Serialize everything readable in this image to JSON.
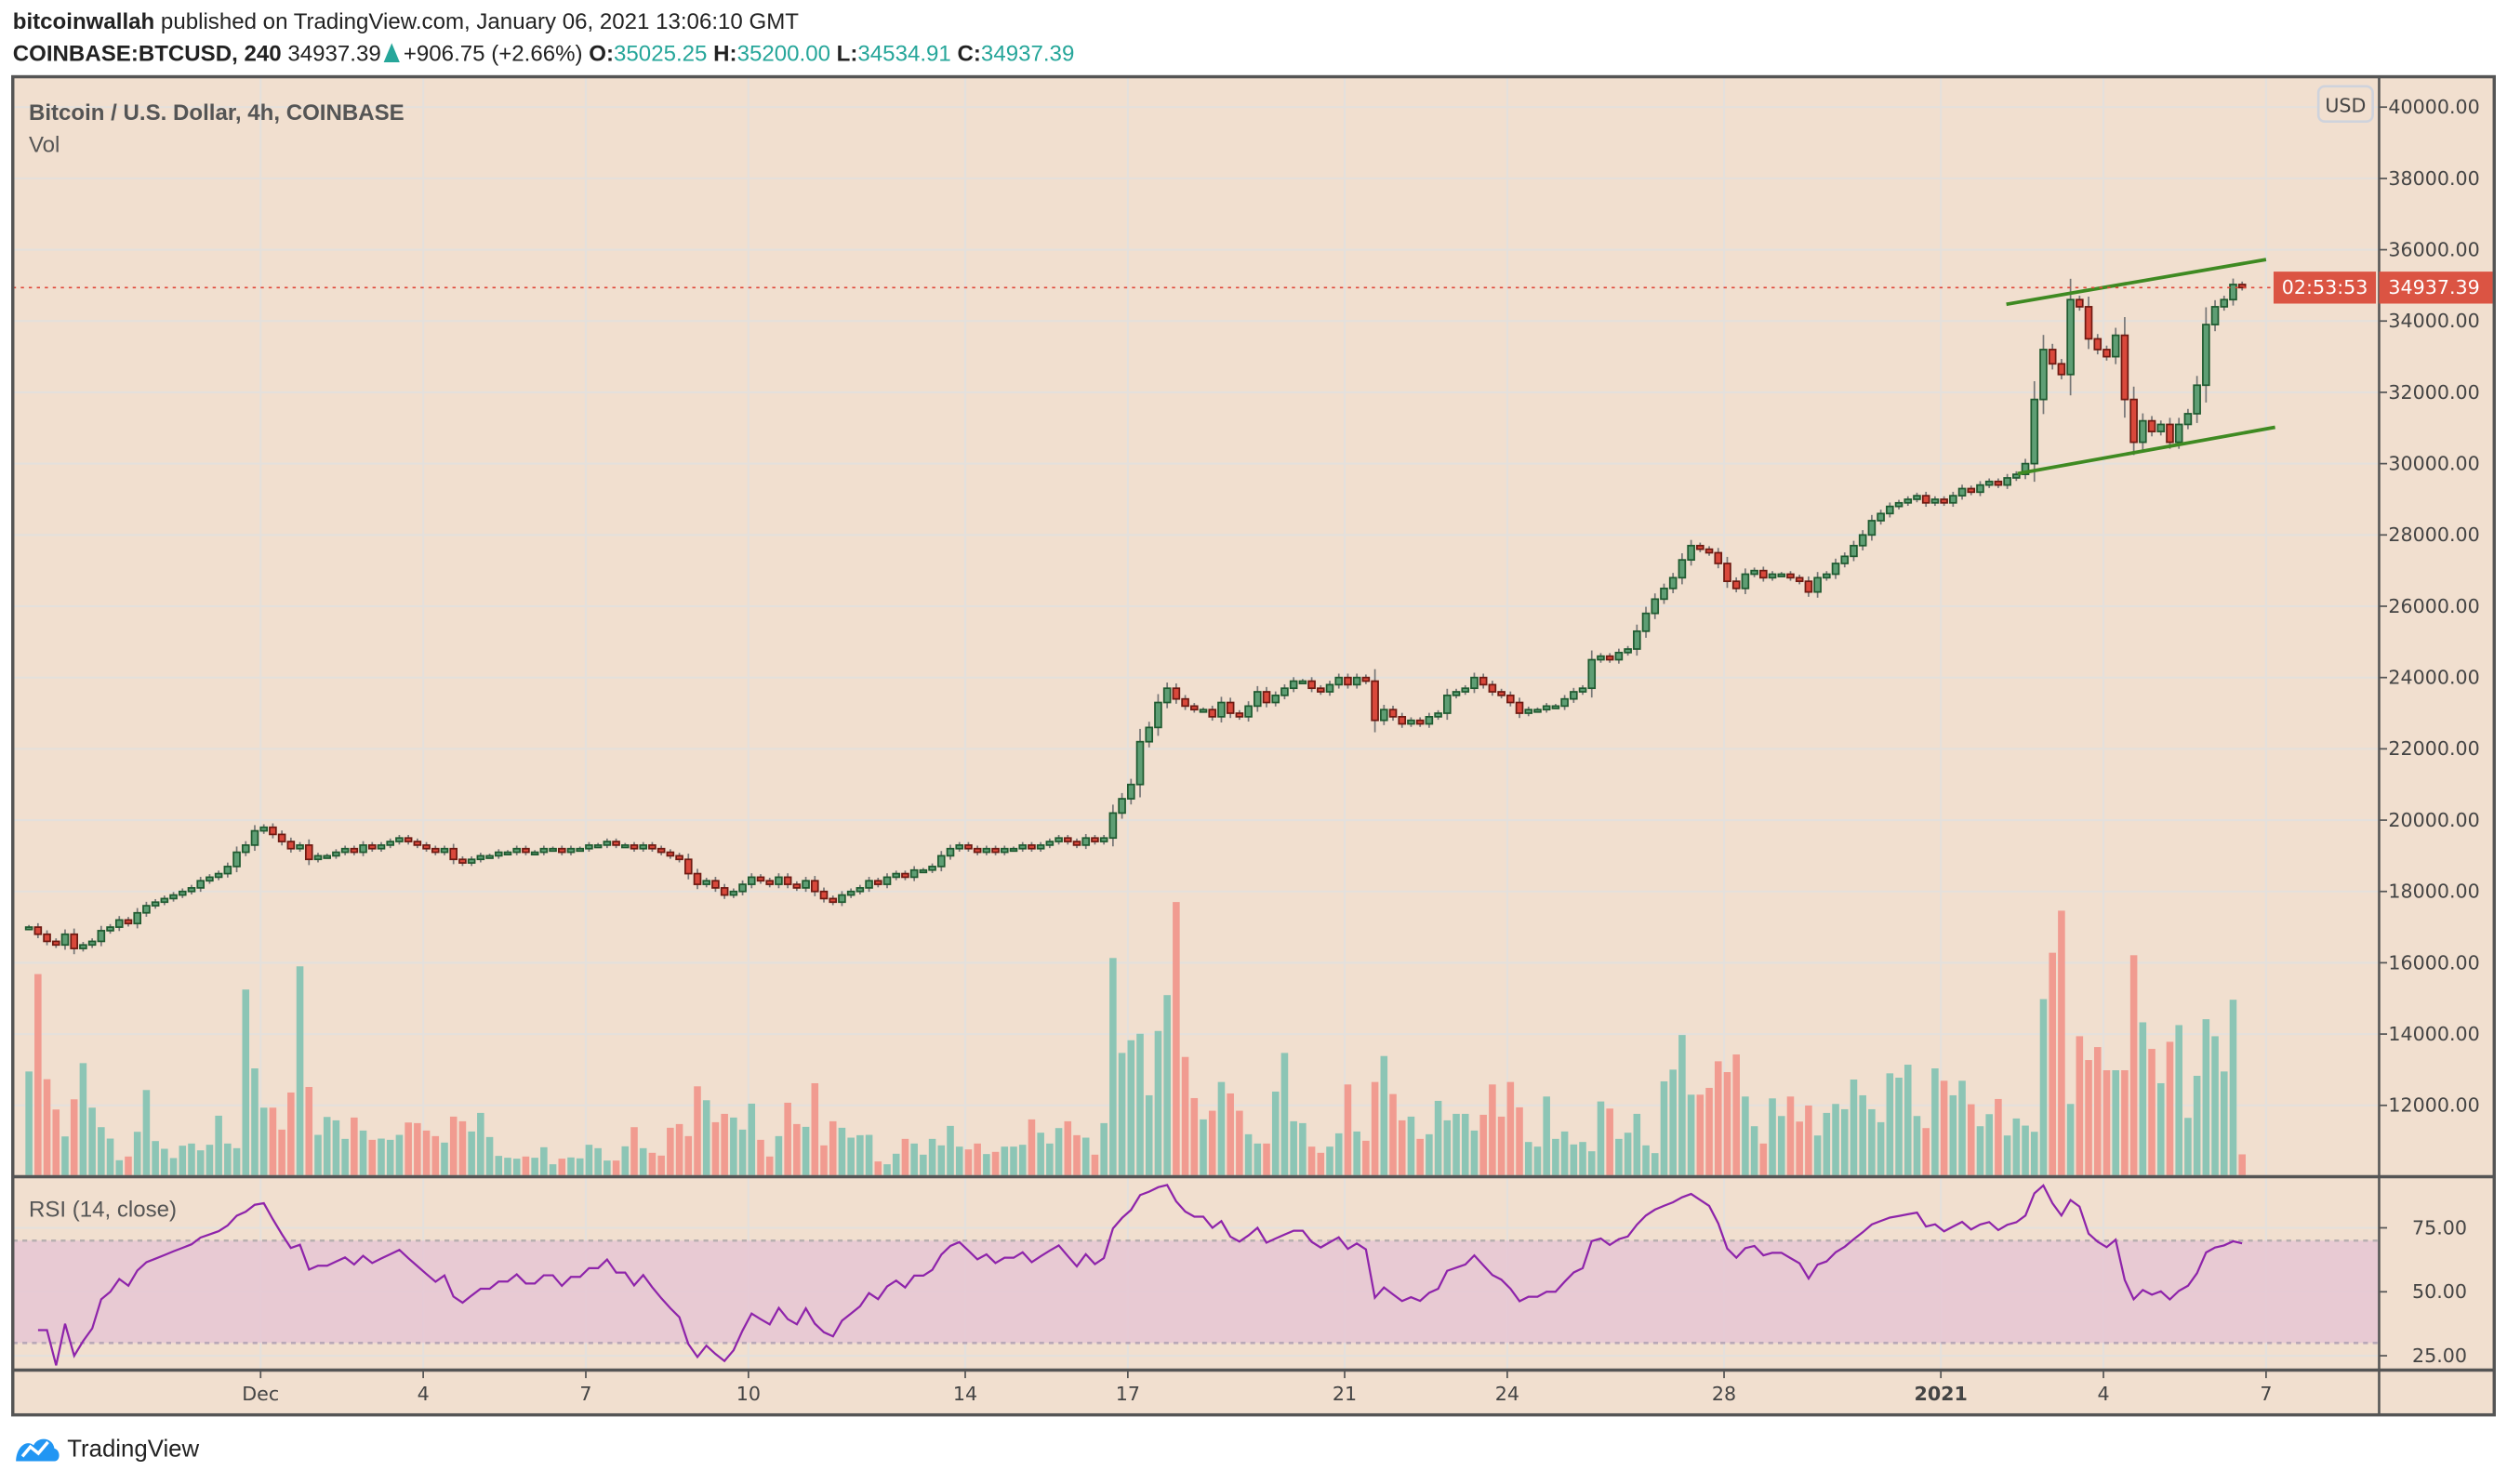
{
  "header": {
    "author": "bitcoinwallah",
    "published": "published on TradingView.com, January 06, 2021 13:06:10 GMT",
    "symbol": "COINBASE:BTCUSD, 240",
    "last": "34937.39",
    "change": "+906.75 (+2.66%)",
    "open_label": "O:",
    "open": "35025.25",
    "high_label": "H:",
    "high": "35200.00",
    "low_label": "L:",
    "low": "34534.91",
    "close_label": "C:",
    "close": "34937.39"
  },
  "legend": {
    "title": "Bitcoin / U.S. Dollar, 4h, COINBASE",
    "volume": "Vol"
  },
  "price_axis": {
    "currency": "USD",
    "ticks": [
      "12000.00",
      "14000.00",
      "16000.00",
      "18000.00",
      "20000.00",
      "22000.00",
      "24000.00",
      "26000.00",
      "28000.00",
      "30000.00",
      "32000.00",
      "34000.00",
      "36000.00",
      "38000.00",
      "40000.00"
    ],
    "last_price_label": "34937.39",
    "countdown": "02:53:53"
  },
  "rsi": {
    "label": "RSI (14, close)",
    "ticks": [
      "75.00",
      "50.00",
      "25.00"
    ],
    "upper_band": 70,
    "lower_band": 30,
    "length": 14
  },
  "time_axis": {
    "ticks": [
      {
        "label": "Dec",
        "date": "2020-12-01"
      },
      {
        "label": "4",
        "date": "2020-12-04"
      },
      {
        "label": "7",
        "date": "2020-12-07"
      },
      {
        "label": "10",
        "date": "2020-12-10"
      },
      {
        "label": "14",
        "date": "2020-12-14"
      },
      {
        "label": "17",
        "date": "2020-12-17"
      },
      {
        "label": "21",
        "date": "2020-12-21"
      },
      {
        "label": "24",
        "date": "2020-12-24"
      },
      {
        "label": "28",
        "date": "2020-12-28"
      },
      {
        "label": "2021",
        "date": "2021-01-01"
      },
      {
        "label": "4",
        "date": "2021-01-04"
      },
      {
        "label": "7",
        "date": "2021-01-07"
      }
    ]
  },
  "footer": {
    "brand": "TradingView"
  },
  "colors": {
    "background": "#f1dfcf",
    "up": "#5e9e74",
    "up_border": "#1f5a30",
    "down": "#d9483b",
    "down_border": "#6e1a12",
    "volume_up": "#8cc5b5",
    "volume_down": "#f19b90",
    "rsi_line": "#8e24aa",
    "rsi_band": "#e6c7d3",
    "trendline": "#3f8a22",
    "price_line": "#e0473a",
    "accent": "#26a69a",
    "brand": "#2196f3"
  },
  "chart_data": {
    "type": "candlestick",
    "interval": "4h",
    "start": "2020-11-26T16:00:00Z",
    "ylim": [
      10000,
      40000
    ],
    "close": [
      17000,
      16800,
      16600,
      16500,
      16800,
      16400,
      16500,
      16600,
      16900,
      17000,
      17200,
      17100,
      17400,
      17600,
      17700,
      17800,
      17900,
      18000,
      18100,
      18300,
      18400,
      18500,
      18700,
      19100,
      19300,
      19700,
      19800,
      19600,
      19400,
      19200,
      19300,
      18900,
      19000,
      19000,
      19100,
      19200,
      19100,
      19300,
      19200,
      19300,
      19400,
      19500,
      19400,
      19300,
      19200,
      19100,
      19200,
      18900,
      18800,
      18900,
      19000,
      19000,
      19100,
      19100,
      19200,
      19100,
      19100,
      19200,
      19200,
      19100,
      19200,
      19200,
      19300,
      19300,
      19400,
      19300,
      19300,
      19200,
      19300,
      19200,
      19100,
      19000,
      18900,
      18500,
      18200,
      18300,
      18100,
      17900,
      18000,
      18200,
      18400,
      18300,
      18200,
      18400,
      18200,
      18100,
      18300,
      18000,
      17800,
      17700,
      17900,
      18000,
      18100,
      18300,
      18200,
      18400,
      18500,
      18400,
      18600,
      18600,
      18700,
      19000,
      19200,
      19300,
      19200,
      19100,
      19200,
      19100,
      19200,
      19200,
      19300,
      19200,
      19300,
      19400,
      19500,
      19400,
      19300,
      19500,
      19400,
      19500,
      20200,
      20600,
      21000,
      22200,
      22600,
      23300,
      23700,
      23400,
      23200,
      23100,
      23100,
      22900,
      23300,
      23000,
      22900,
      23200,
      23600,
      23300,
      23500,
      23700,
      23900,
      23900,
      23700,
      23600,
      23800,
      24000,
      23800,
      24000,
      23900,
      22800,
      23100,
      22900,
      22700,
      22800,
      22700,
      22900,
      23000,
      23500,
      23600,
      23700,
      24000,
      23800,
      23600,
      23500,
      23300,
      23000,
      23100,
      23100,
      23200,
      23200,
      23400,
      23600,
      23700,
      24500,
      24600,
      24500,
      24700,
      24800,
      25300,
      25800,
      26200,
      26500,
      26800,
      27300,
      27700,
      27600,
      27500,
      27200,
      26700,
      26500,
      26900,
      27000,
      26800,
      26900,
      26900,
      26800,
      26700,
      26400,
      26800,
      26900,
      27200,
      27400,
      27700,
      28000,
      28400,
      28600,
      28800,
      28900,
      29000,
      29100,
      28900,
      29000,
      28900,
      29100,
      29300,
      29200,
      29400,
      29500,
      29400,
      29600,
      29700,
      30000,
      31800,
      33200,
      32800,
      32500,
      34600,
      34400,
      33500,
      33200,
      33000,
      33600,
      31800,
      30600,
      31200,
      30900,
      31100,
      30600,
      31100,
      31400,
      32200,
      33900,
      34400,
      34600,
      35025.25,
      34937.39
    ],
    "volume": [
      335,
      650,
      310,
      212,
      125,
      245,
      362,
      218,
      155,
      118,
      48,
      60,
      140,
      275,
      110,
      85,
      55,
      95,
      102,
      80,
      98,
      192,
      102,
      87,
      600,
      345,
      218,
      218,
      147,
      267,
      675,
      285,
      130,
      188,
      177,
      117,
      186,
      144,
      114,
      118,
      114,
      130,
      170,
      168,
      144,
      126,
      105,
      189,
      174,
      141,
      201,
      123,
      62,
      56,
      53,
      60,
      56,
      90,
      35,
      53,
      57,
      54,
      98,
      87,
      47,
      47,
      93,
      155,
      87,
      72,
      63,
      153,
      165,
      126,
      287,
      242,
      171,
      198,
      186,
      147,
      231,
      114,
      60,
      126,
      234,
      165,
      156,
      297,
      96,
      174,
      153,
      121,
      129,
      130,
      44,
      35,
      69,
      117,
      102,
      66,
      117,
      96,
      159,
      92,
      83,
      102,
      68,
      75,
      92,
      92,
      98,
      180,
      137,
      102,
      152,
      174,
      129,
      121,
      66,
      168,
      702,
      395,
      436,
      457,
      258,
      466,
      582,
      883,
      382,
      249,
      180,
      208,
      301,
      264,
      208,
      132,
      102,
      102,
      270,
      395,
      174,
      168,
      92,
      72,
      92,
      135,
      293,
      141,
      111,
      301,
      385,
      262,
      177,
      189,
      117,
      132,
      240,
      177,
      198,
      198,
      144,
      195,
      293,
      189,
      301,
      219,
      107,
      92,
      254,
      117,
      141,
      99,
      107,
      77,
      238,
      215,
      117,
      137,
      198,
      96,
      71,
      303,
      341,
      453,
      260,
      260,
      282,
      368,
      333,
      390,
      254,
      158,
      102,
      248,
      191,
      254,
      173,
      225,
      128,
      201,
      230,
      213,
      309,
      258,
      213,
      171,
      329,
      315,
      357,
      191,
      152,
      345,
      305,
      258,
      305,
      229,
      158,
      197,
      246,
      128,
      183,
      160,
      140,
      569,
      719,
      855,
      230,
      449,
      372,
      414,
      339,
      339,
      339,
      711,
      494,
      408,
      297,
      431,
      485,
      185,
      321,
      504,
      449,
      335,
      567,
      67
    ],
    "trendlines": [
      {
        "from": {
          "time": "2021-01-02T05:00:00Z",
          "price": 34470
        },
        "to": {
          "time": "2021-01-07T00:00:00Z",
          "price": 35725
        }
      },
      {
        "from": {
          "time": "2021-01-02T10:00:00Z",
          "price": 29720
        },
        "to": {
          "time": "2021-01-07T04:00:00Z",
          "price": 31020
        }
      }
    ]
  }
}
